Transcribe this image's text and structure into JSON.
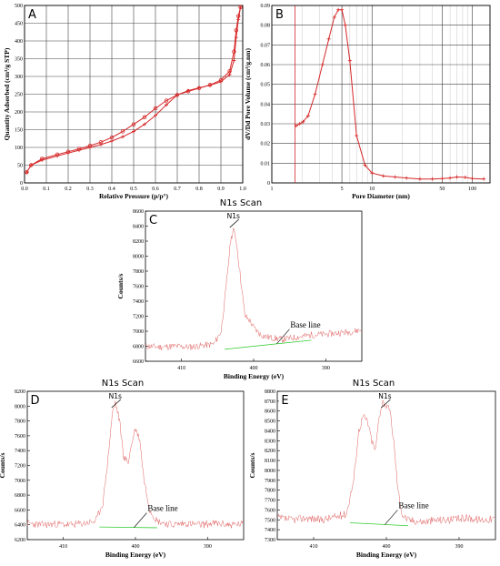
{
  "chart_data": [
    {
      "id": "A",
      "type": "line",
      "panel_label": "A",
      "xlabel": "Relative Pressure (p/p°)",
      "ylabel": "Quantity Adsorbed (cm³/g STP)",
      "xlim": [
        0,
        1.0
      ],
      "ylim": [
        0,
        500
      ],
      "xticks": [
        0.0,
        0.1,
        0.2,
        0.3,
        0.4,
        0.5,
        0.6,
        0.7,
        0.8,
        0.9,
        1.0
      ],
      "xtick_labels": [
        "0.0",
        "0.1",
        "0.2",
        "0.3",
        "0.4",
        "0.5",
        "0.6",
        "0.7",
        "0.8",
        "0.9",
        "1.0"
      ],
      "yticks": [
        0,
        50,
        100,
        150,
        200,
        250,
        300,
        350,
        400,
        450,
        500
      ],
      "grid": true,
      "color": "#d62728",
      "series": [
        {
          "marker": "circle",
          "x": [
            0.01,
            0.03,
            0.08,
            0.15,
            0.2,
            0.25,
            0.3,
            0.35,
            0.4,
            0.45,
            0.5,
            0.55,
            0.6,
            0.65,
            0.7,
            0.75,
            0.8,
            0.85,
            0.9,
            0.94,
            0.96,
            0.97,
            0.98,
            0.99
          ],
          "y": [
            30,
            50,
            68,
            80,
            88,
            96,
            105,
            115,
            128,
            145,
            165,
            185,
            210,
            232,
            248,
            258,
            267,
            276,
            290,
            315,
            370,
            430,
            470,
            495
          ]
        },
        {
          "marker": "plus",
          "x": [
            0.01,
            0.03,
            0.08,
            0.15,
            0.2,
            0.25,
            0.3,
            0.35,
            0.4,
            0.45,
            0.5,
            0.55,
            0.6,
            0.65,
            0.7,
            0.75,
            0.8,
            0.85,
            0.9,
            0.94,
            0.96,
            0.97,
            0.98,
            0.99
          ],
          "y": [
            30,
            50,
            64,
            76,
            84,
            92,
            100,
            108,
            118,
            130,
            145,
            165,
            190,
            220,
            248,
            260,
            268,
            275,
            285,
            305,
            345,
            410,
            460,
            495
          ]
        }
      ]
    },
    {
      "id": "B",
      "type": "line",
      "panel_label": "B",
      "xlabel": "Pore Diameter (nm)",
      "ylabel": "dV/Dd Pore Volume (cm³/g.nm)",
      "xscale": "log",
      "xlim": [
        1,
        150
      ],
      "ylim": [
        0,
        0.09
      ],
      "xticks": [
        1,
        5,
        10,
        50,
        100
      ],
      "xtick_labels": [
        "1",
        "5",
        "10",
        "50",
        "100"
      ],
      "yticks": [
        0,
        0.01,
        0.02,
        0.03,
        0.04,
        0.05,
        0.06,
        0.07,
        0.08,
        0.09
      ],
      "ytick_labels": [
        "0",
        "0.01",
        "0.02",
        "0.03",
        "0.04",
        "0.05",
        "0.06",
        "0.07",
        "0.08",
        "0.09"
      ],
      "grid": true,
      "color": "#d62728",
      "vline_x": 1.7,
      "series": [
        {
          "marker": "plus",
          "x": [
            1.75,
            1.9,
            2.05,
            2.3,
            2.7,
            3.2,
            3.7,
            4.2,
            4.6,
            5.0,
            5.4,
            6.0,
            7.0,
            8.5,
            10,
            13,
            17,
            22,
            30,
            40,
            50,
            60,
            70,
            85,
            100,
            130
          ],
          "y": [
            0.029,
            0.03,
            0.031,
            0.034,
            0.045,
            0.06,
            0.073,
            0.084,
            0.0878,
            0.0878,
            0.08,
            0.062,
            0.024,
            0.009,
            0.005,
            0.0035,
            0.003,
            0.0025,
            0.002,
            0.002,
            0.0022,
            0.0025,
            0.003,
            0.0028,
            0.0022,
            0.002
          ]
        }
      ]
    },
    {
      "id": "C",
      "type": "line",
      "panel_label": "C",
      "title": "N1s Scan",
      "xlabel": "Binding Energy (eV)",
      "ylabel": "Counts/s",
      "xlim": [
        415,
        385
      ],
      "ylim": [
        6600,
        8600
      ],
      "xticks": [
        410,
        400,
        390
      ],
      "yticks": [
        6600,
        6800,
        7000,
        7200,
        7400,
        7600,
        7800,
        8000,
        8200,
        8400,
        8600
      ],
      "peak_label": "N1s",
      "peak_x": 402.8,
      "baseline_label": "Base line",
      "signal_color": "#e06060",
      "baseline_color": "#33cc33",
      "signal": {
        "x": [
          415,
          413,
          411,
          409,
          407,
          405.5,
          404.5,
          403.8,
          403.2,
          402.8,
          402.4,
          401.8,
          401.2,
          400.6,
          400,
          399,
          398,
          396,
          394,
          392,
          390,
          388,
          386,
          385
        ],
        "y": [
          6800,
          6790,
          6800,
          6790,
          6810,
          6830,
          7000,
          7600,
          8200,
          8360,
          8200,
          7700,
          7200,
          7150,
          7050,
          6950,
          6920,
          6890,
          6920,
          6950,
          6960,
          6980,
          7000,
          7020
        ]
      },
      "baseline": {
        "x": [
          404,
          392
        ],
        "y": [
          6760,
          6880
        ]
      },
      "noise_amp": 45
    },
    {
      "id": "D",
      "type": "line",
      "panel_label": "D",
      "title": "N1s Scan",
      "xlabel": "Binding Energy (eV)",
      "ylabel": "Counts/s",
      "xlim": [
        415,
        385
      ],
      "ylim": [
        6200,
        8200
      ],
      "xticks": [
        410,
        400,
        390
      ],
      "yticks": [
        6200,
        6400,
        6600,
        6800,
        7000,
        7200,
        7400,
        7600,
        7800,
        8000,
        8200
      ],
      "peak_label": "N1s",
      "peak_x": 402.8,
      "baseline_label": "Base line",
      "signal_color": "#e06060",
      "baseline_color": "#33cc33",
      "signal": {
        "x": [
          415,
          413,
          411,
          409,
          407,
          405.5,
          404.5,
          403.8,
          403.2,
          402.8,
          402.2,
          401.6,
          401,
          400.5,
          400,
          399.4,
          398.8,
          398,
          397,
          395,
          393,
          391,
          389,
          387,
          385
        ],
        "y": [
          6420,
          6400,
          6410,
          6400,
          6420,
          6450,
          6700,
          7300,
          7900,
          8050,
          7800,
          7300,
          7250,
          7500,
          7700,
          7550,
          7000,
          6600,
          6450,
          6400,
          6420,
          6400,
          6420,
          6400,
          6410
        ]
      },
      "baseline": {
        "x": [
          405,
          397
        ],
        "y": [
          6370,
          6360
        ]
      },
      "noise_amp": 50
    },
    {
      "id": "E",
      "type": "line",
      "panel_label": "E",
      "title": "N1s Scan",
      "xlabel": "Binding Energy (eV)",
      "ylabel": "Counts/s",
      "xlim": [
        415,
        385
      ],
      "ylim": [
        7300,
        8800
      ],
      "xticks": [
        410,
        400,
        390
      ],
      "yticks": [
        7300,
        7400,
        7500,
        7600,
        7700,
        7800,
        7900,
        8000,
        8100,
        8200,
        8300,
        8400,
        8500,
        8600,
        8700,
        8800
      ],
      "peak_label": "N1s",
      "peak_x": 400.2,
      "baseline_label": "Base line",
      "signal_color": "#e06060",
      "baseline_color": "#33cc33",
      "signal": {
        "x": [
          415,
          413,
          411,
          409,
          407,
          405.5,
          404.5,
          403.8,
          403.2,
          402.6,
          402,
          401.5,
          401,
          400.5,
          400,
          399.5,
          399,
          398.4,
          397.8,
          397,
          395,
          393,
          391,
          389,
          387,
          385
        ],
        "y": [
          7520,
          7500,
          7520,
          7500,
          7530,
          7560,
          7900,
          8400,
          8550,
          8500,
          8300,
          8200,
          8550,
          8700,
          8650,
          8600,
          8300,
          7800,
          7550,
          7500,
          7480,
          7500,
          7500,
          7520,
          7500,
          7510
        ]
      },
      "baseline": {
        "x": [
          405,
          397
        ],
        "y": [
          7470,
          7440
        ]
      },
      "noise_amp": 40
    }
  ]
}
